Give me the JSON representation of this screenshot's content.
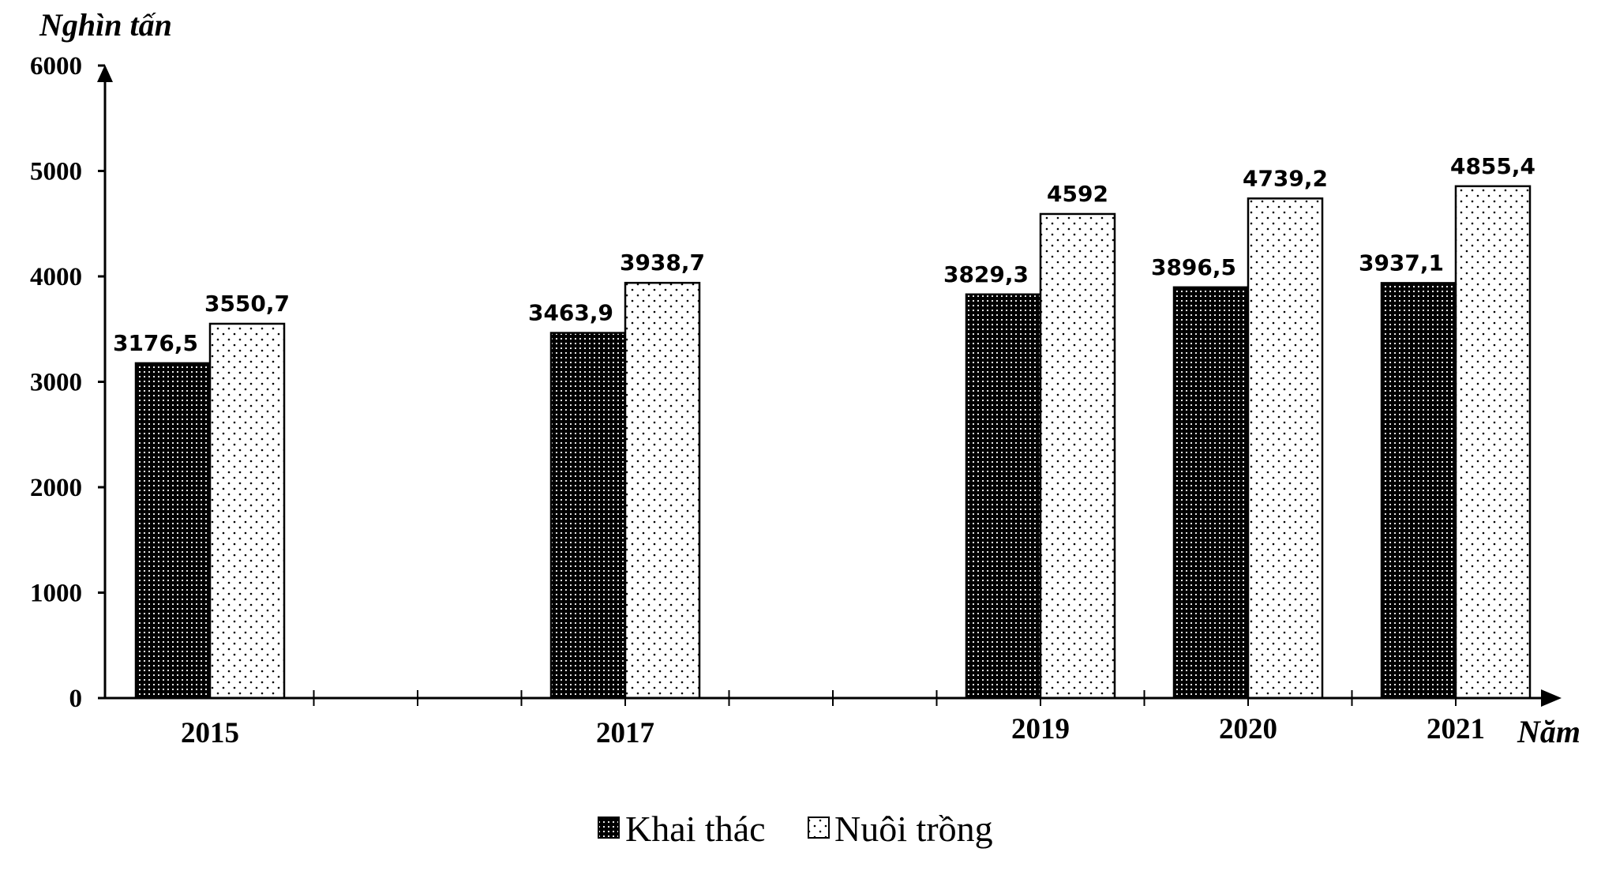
{
  "chart_data": {
    "type": "bar",
    "ylabel": "Nghìn tấn",
    "xlabel": "Năm",
    "categories": [
      "2015",
      "2017",
      "2019",
      "2020",
      "2021"
    ],
    "x_positions": [
      2015,
      2017,
      2019,
      2020,
      2021
    ],
    "ylim": [
      0,
      6000
    ],
    "yticks": [
      0,
      1000,
      2000,
      3000,
      4000,
      5000,
      6000
    ],
    "grid": false,
    "legend_position": "bottom",
    "series": [
      {
        "name": "Khai thác",
        "fill": "dark-dotted",
        "color": "#000000",
        "values": [
          3176.5,
          3463.9,
          3829.3,
          3896.5,
          3937.1
        ],
        "labels": [
          "3176,5",
          "3463,9",
          "3829,3",
          "3896,5",
          "3937,1"
        ]
      },
      {
        "name": "Nuôi trồng",
        "fill": "light-dotted",
        "color": "#ffffff",
        "values": [
          3550.7,
          3938.7,
          4592,
          4739.2,
          4855.4
        ],
        "labels": [
          "3550,7",
          "3938,7",
          "4592",
          "4739,2",
          "4855,4"
        ]
      }
    ]
  }
}
